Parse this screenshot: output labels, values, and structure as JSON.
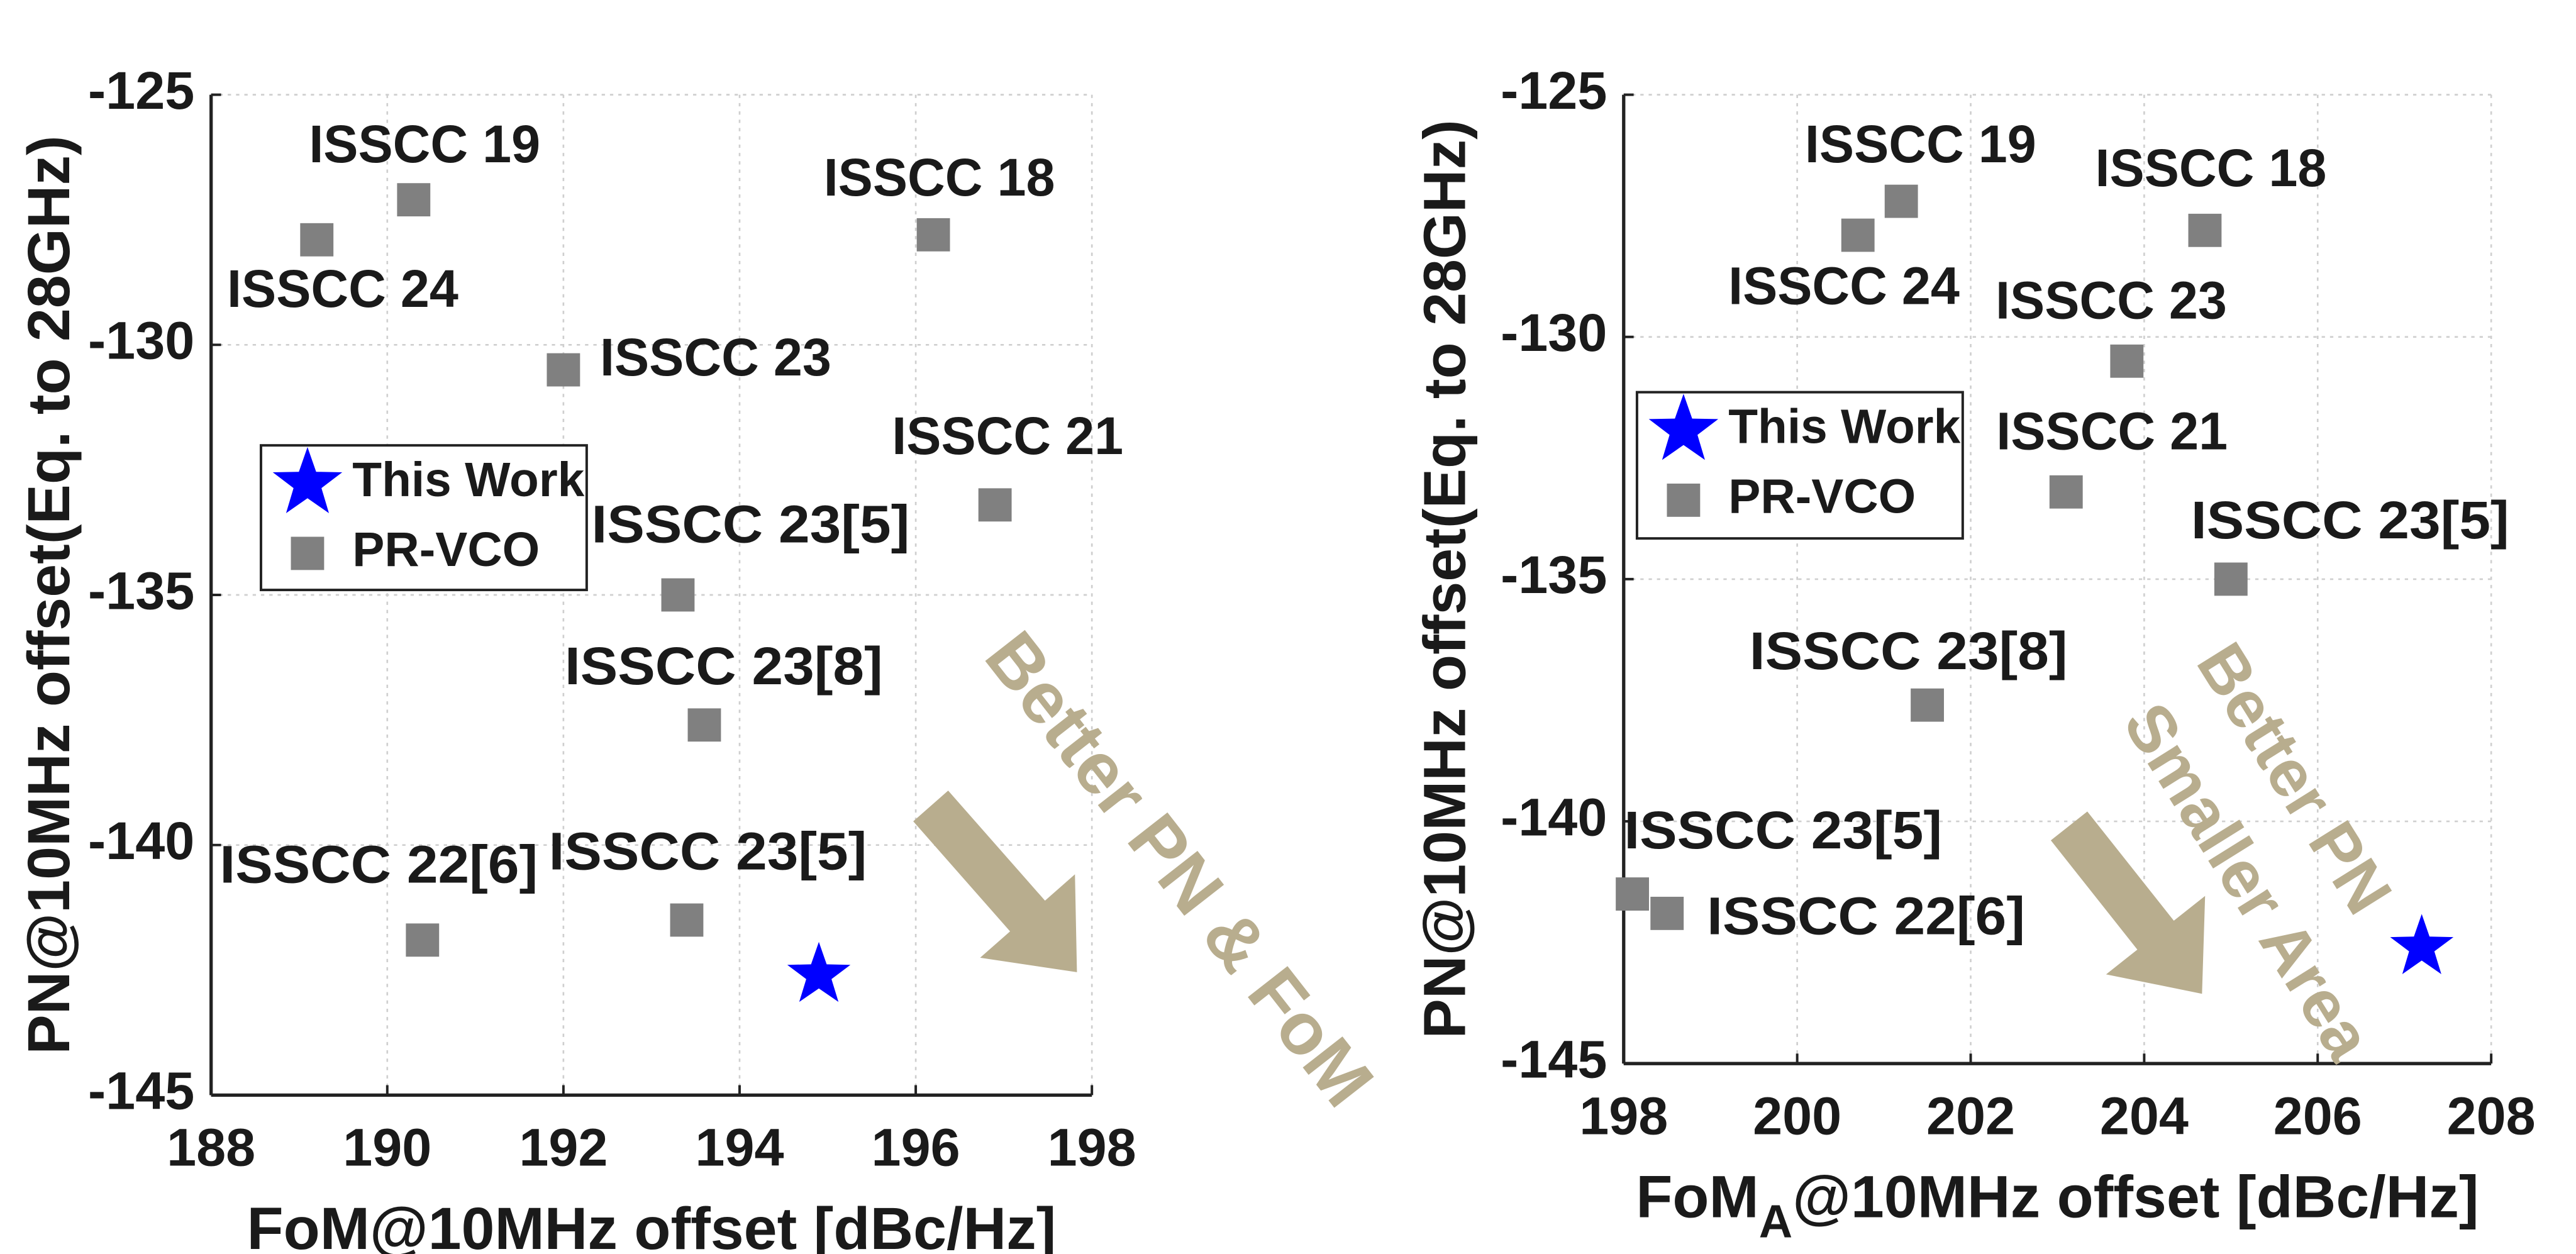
{
  "chart_data": [
    {
      "type": "scatter",
      "xlabel": "FoM@10MHz offset [dBc/Hz]",
      "ylabel": "PN@10MHz offset(Eq. to 28GHz)",
      "xlim": [
        188,
        198
      ],
      "xticks": [
        188,
        190,
        192,
        194,
        196,
        198
      ],
      "ylim": [
        -145,
        -125
      ],
      "yticks": [
        -145,
        -140,
        -135,
        -130,
        -125
      ],
      "grid": true,
      "annotations": [
        "Better PN & FoM"
      ],
      "series": [
        {
          "name": "This Work",
          "color": "#0000ff",
          "marker": "star",
          "x": [
            194.9
          ],
          "values": [
            -142.6
          ]
        },
        {
          "name": "PR-VCO",
          "color": "#808080",
          "marker": "square",
          "x": [
            189.2,
            190.3,
            196.2,
            192.0,
            196.9,
            193.3,
            193.6,
            190.4,
            193.4
          ],
          "values": [
            -127.9,
            -127.1,
            -127.8,
            -130.5,
            -133.2,
            -135.0,
            -137.6,
            -141.9,
            -141.5
          ],
          "labels": [
            "ISSCC 24",
            "ISSCC 19",
            "ISSCC 18",
            "ISSCC 23",
            "ISSCC 21",
            "ISSCC 23[5]",
            "ISSCC 23[8]",
            "ISSCC 22[6]",
            "ISSCC 23[5]"
          ]
        }
      ]
    },
    {
      "type": "scatter",
      "xlabel": [
        "FoM",
        "A",
        "@10MHz offset [dBc/Hz]"
      ],
      "ylabel": "PN@10MHz offset(Eq. to 28GHz)",
      "xlim": [
        198,
        208
      ],
      "xticks": [
        198,
        200,
        202,
        204,
        206,
        208
      ],
      "ylim": [
        -145,
        -125
      ],
      "yticks": [
        -145,
        -140,
        -135,
        -130,
        -125
      ],
      "grid": true,
      "annotations": [
        "Better PN",
        "Smaller Area"
      ],
      "series": [
        {
          "name": "This Work",
          "color": "#0000ff",
          "marker": "star",
          "x": [
            207.2
          ],
          "values": [
            -142.6
          ]
        },
        {
          "name": "PR-VCO",
          "color": "#808080",
          "marker": "square",
          "x": [
            200.7,
            201.2,
            204.7,
            203.8,
            203.1,
            205.0,
            201.5,
            198.1,
            198.5
          ],
          "values": [
            -127.9,
            -127.2,
            -127.8,
            -130.5,
            -133.2,
            -135.0,
            -137.6,
            -141.5,
            -141.9
          ],
          "labels": [
            "ISSCC 24",
            "ISSCC 19",
            "ISSCC 18",
            "ISSCC 23",
            "ISSCC 21",
            "ISSCC 23[5]",
            "ISSCC 23[8]",
            "ISSCC 23[5]",
            "ISSCC 22[6]"
          ]
        }
      ]
    }
  ]
}
